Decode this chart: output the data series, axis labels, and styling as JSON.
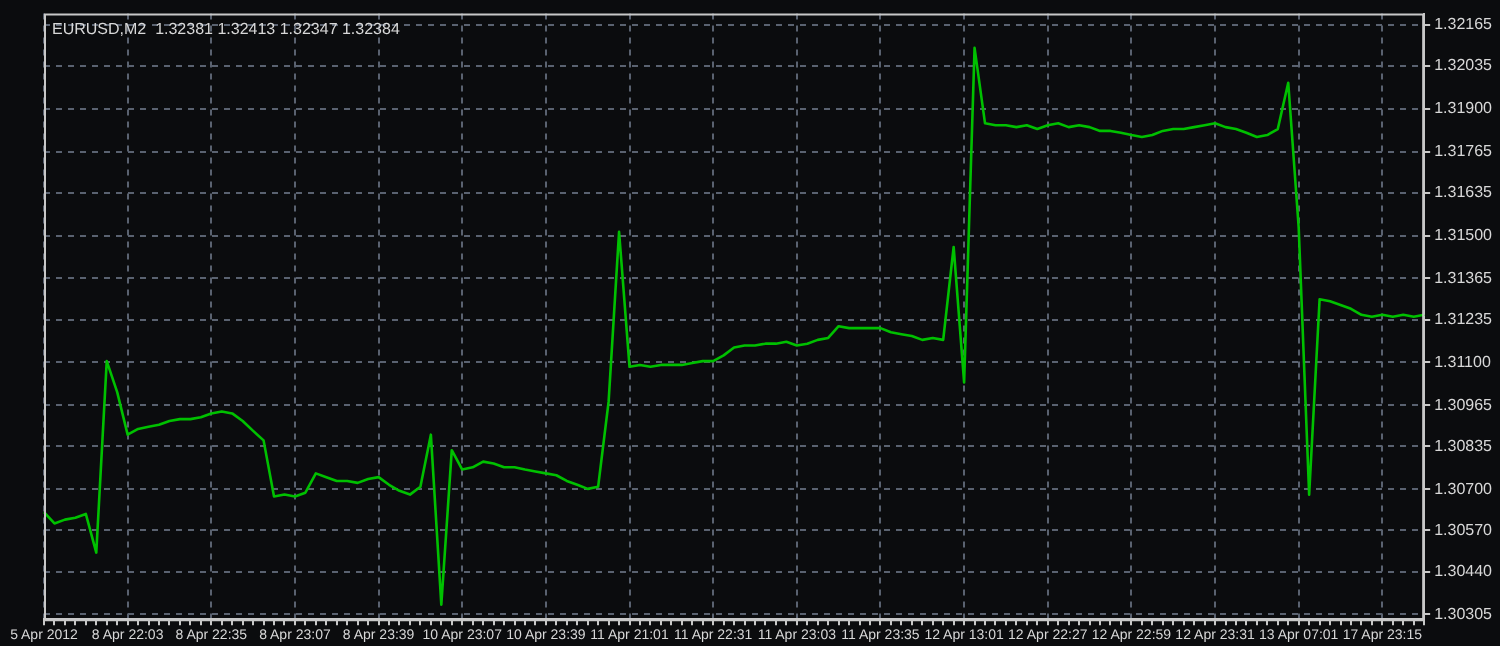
{
  "chart_data": {
    "type": "line",
    "title": "EURUSD,M2  1.32381 1.32413 1.32347 1.32384",
    "categories": [
      "5 Apr 2012",
      null,
      null,
      null,
      null,
      null,
      null,
      null,
      "8 Apr 22:03",
      null,
      null,
      null,
      null,
      null,
      null,
      null,
      "8 Apr 22:35",
      null,
      null,
      null,
      null,
      null,
      null,
      null,
      "8 Apr 23:07",
      null,
      null,
      null,
      null,
      null,
      null,
      null,
      "8 Apr 23:39",
      null,
      null,
      null,
      null,
      null,
      null,
      null,
      "10 Apr 23:07",
      null,
      null,
      null,
      null,
      null,
      null,
      null,
      "10 Apr 23:39",
      null,
      null,
      null,
      null,
      null,
      null,
      null,
      "11 Apr 21:01",
      null,
      null,
      null,
      null,
      null,
      null,
      null,
      "11 Apr 22:31",
      null,
      null,
      null,
      null,
      null,
      null,
      null,
      "11 Apr 23:03",
      null,
      null,
      null,
      null,
      null,
      null,
      null,
      "11 Apr 23:35",
      null,
      null,
      null,
      null,
      null,
      null,
      null,
      "12 Apr 13:01",
      null,
      null,
      null,
      null,
      null,
      null,
      null,
      "12 Apr 22:27",
      null,
      null,
      null,
      null,
      null,
      null,
      null,
      "12 Apr 22:59",
      null,
      null,
      null,
      null,
      null,
      null,
      null,
      "12 Apr 23:31",
      null,
      null,
      null,
      null,
      null,
      null,
      null,
      "13 Apr 07:01",
      null,
      null,
      null,
      null,
      null,
      null,
      null,
      "17 Apr 23:15",
      null,
      null,
      null,
      null
    ],
    "series": [
      {
        "color": "#00c000",
        "values": [
          1.30628,
          1.30592,
          1.30604,
          1.3061,
          1.30622,
          1.305,
          1.31104,
          1.31006,
          1.30872,
          1.3089,
          1.30897,
          1.30903,
          1.30915,
          1.30921,
          1.30921,
          1.30927,
          1.30939,
          1.30945,
          1.30939,
          1.30915,
          1.30884,
          1.30854,
          1.30677,
          1.30683,
          1.30677,
          1.30689,
          1.3075,
          1.30738,
          1.30726,
          1.30726,
          1.3072,
          1.30732,
          1.30738,
          1.30714,
          1.30695,
          1.30683,
          1.30708,
          1.30872,
          1.30336,
          1.30823,
          1.30762,
          1.30769,
          1.30787,
          1.30781,
          1.30769,
          1.30769,
          1.30762,
          1.30756,
          1.3075,
          1.30744,
          1.30726,
          1.30714,
          1.30701,
          1.30708,
          1.30976,
          1.31512,
          1.31086,
          1.31092,
          1.31086,
          1.31092,
          1.31092,
          1.31092,
          1.31098,
          1.31104,
          1.31104,
          1.31122,
          1.31147,
          1.31153,
          1.31153,
          1.31159,
          1.31159,
          1.31165,
          1.31153,
          1.31159,
          1.31171,
          1.31177,
          1.31214,
          1.31208,
          1.31208,
          1.31208,
          1.31208,
          1.31195,
          1.31189,
          1.31183,
          1.31171,
          1.31177,
          1.31171,
          1.31464,
          1.31037,
          1.32092,
          1.31854,
          1.31848,
          1.31848,
          1.31842,
          1.31848,
          1.31836,
          1.31848,
          1.31854,
          1.31842,
          1.31848,
          1.31842,
          1.3183,
          1.3183,
          1.31824,
          1.31817,
          1.31811,
          1.31817,
          1.3183,
          1.31836,
          1.31836,
          1.31842,
          1.31848,
          1.31854,
          1.31842,
          1.31836,
          1.31824,
          1.31811,
          1.31817,
          1.31836,
          1.31982,
          1.31525,
          1.30683,
          1.31299,
          1.31293,
          1.31281,
          1.31269,
          1.3125,
          1.31244,
          1.3125,
          1.31244,
          1.3125,
          1.31244,
          1.3125
        ]
      }
    ],
    "ylim": [
      1.3029,
      1.322
    ],
    "yticks": [
      1.32165,
      1.32035,
      {
        "value": 1.319,
        "label": "1.31900"
      },
      1.31765,
      1.31635,
      {
        "value": 1.315,
        "label": "1.31500"
      },
      1.31365,
      1.31235,
      {
        "value": 1.311,
        "label": "1.31100"
      },
      1.30965,
      1.30835,
      {
        "value": 1.307,
        "label": "1.30700"
      },
      {
        "value": 1.3057,
        "label": "1.30570"
      },
      {
        "value": 1.3044,
        "label": "1.30440"
      },
      1.30305
    ],
    "grid": true,
    "line_style": "solid"
  }
}
